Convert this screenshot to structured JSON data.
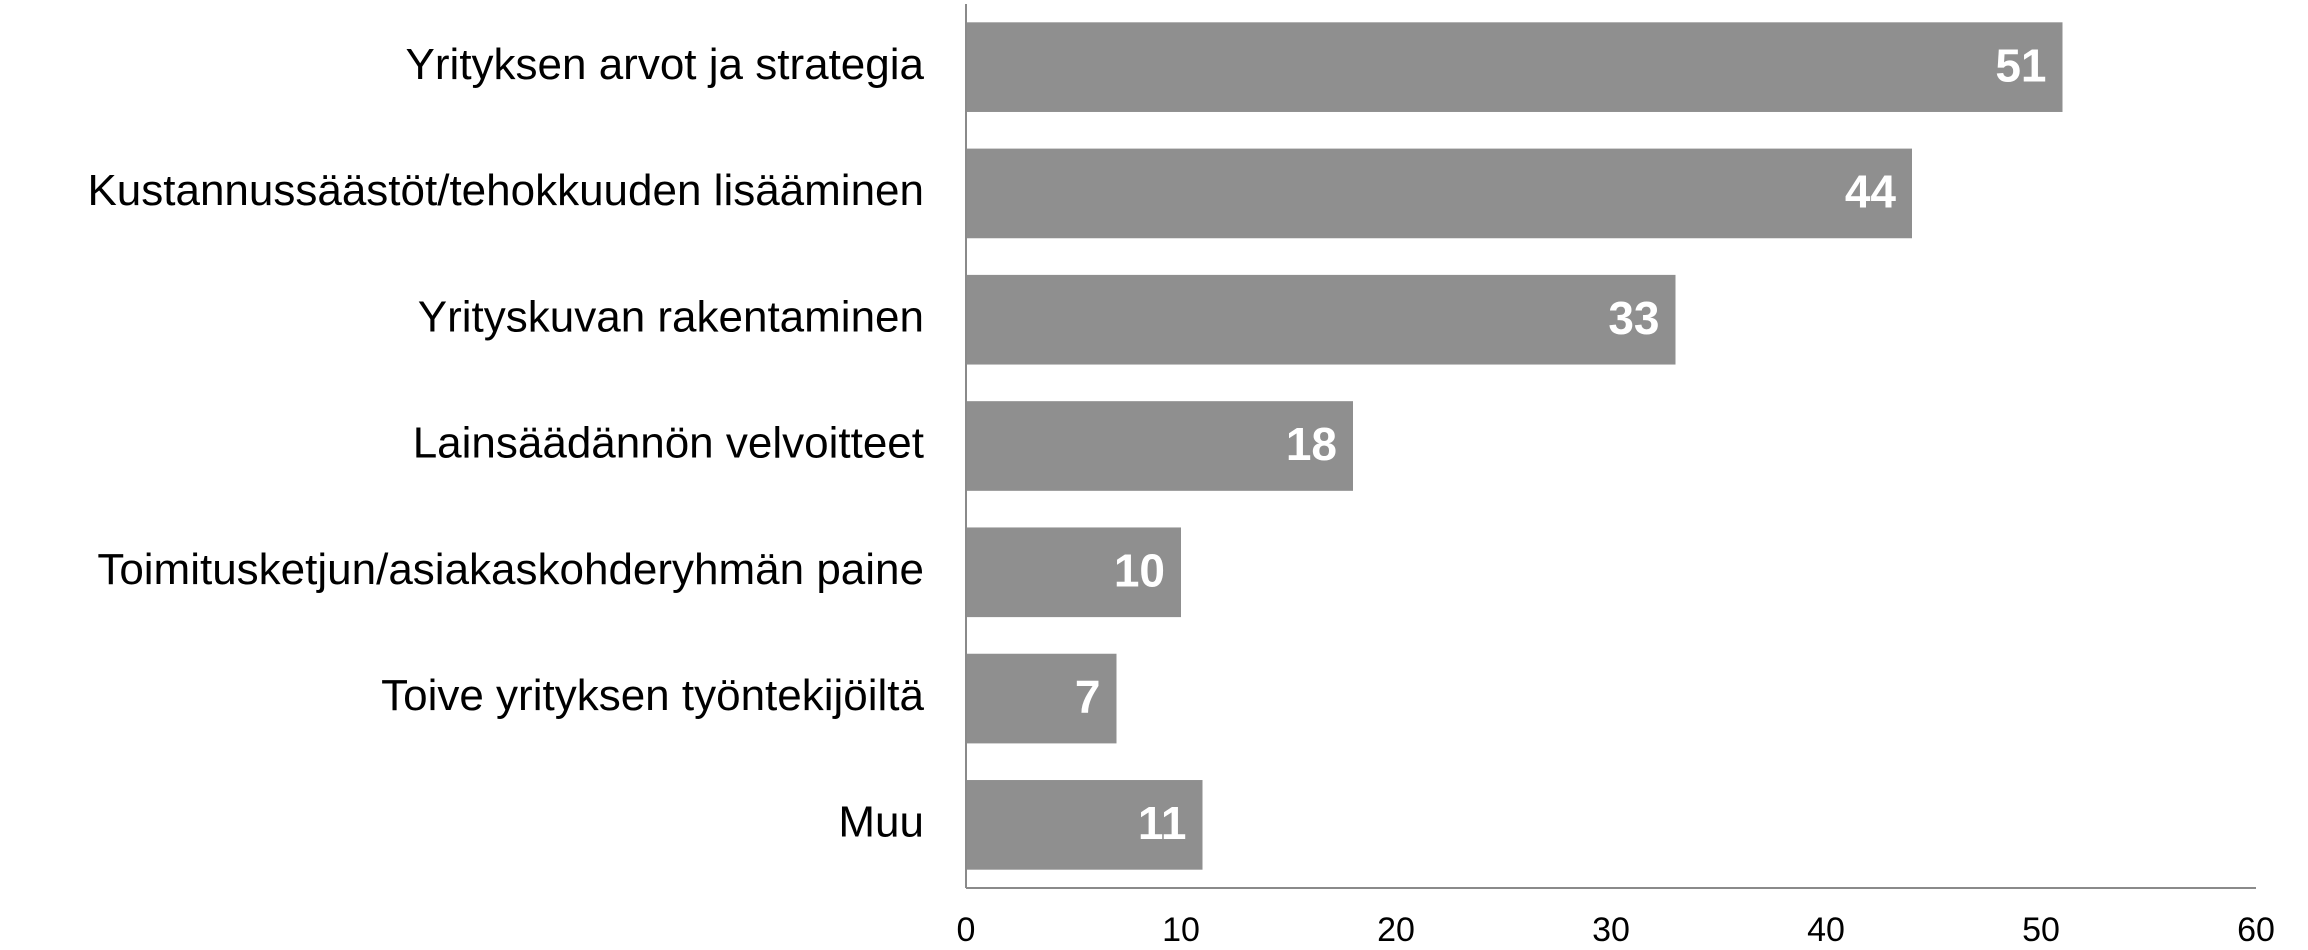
{
  "chart_data": {
    "type": "bar",
    "orientation": "horizontal",
    "categories": [
      "Yrityksen arvot ja strategia",
      "Kustannussäästöt/tehokkuuden lisääminen",
      "Yrityskuvan rakentaminen",
      "Lainsäädännön velvoitteet",
      "Toimitusketjun/asiakaskohderyhmän paine",
      "Toive yrityksen työntekijöiltä",
      "Muu"
    ],
    "values": [
      51,
      44,
      33,
      18,
      10,
      7,
      11
    ],
    "color": "#8f8f8f",
    "xlim": [
      0,
      60
    ],
    "xticks": [
      0,
      10,
      20,
      30,
      40,
      50,
      60
    ],
    "grid": false
  }
}
